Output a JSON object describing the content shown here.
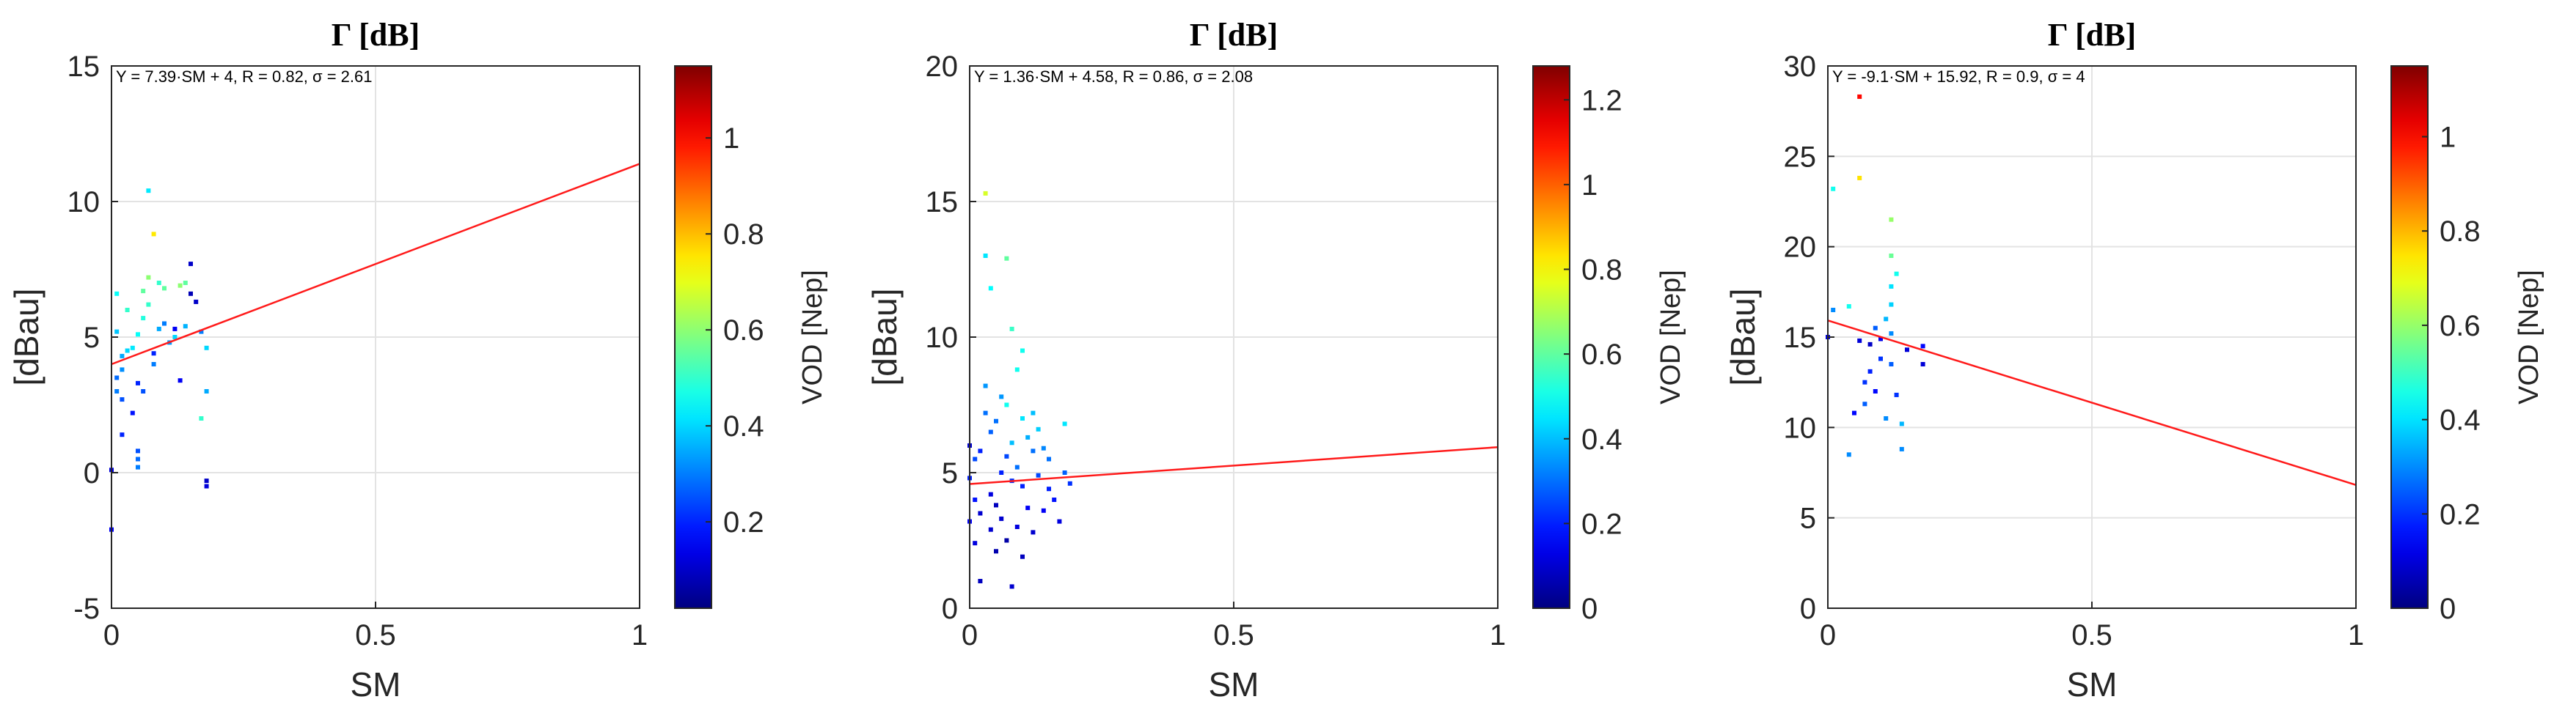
{
  "chart_data": [
    {
      "type": "scatter",
      "title": "Γ [dB]",
      "xlabel": "SM",
      "ylabel": "[dBau]",
      "xlim": [
        0,
        1
      ],
      "ylim": [
        -5,
        15
      ],
      "xticks": [
        "0",
        "0.5",
        "1"
      ],
      "yticks": [
        "-5",
        "0",
        "5",
        "10",
        "15"
      ],
      "grid": true,
      "annotation": "Y = 7.39·SM + 4, R = 0.82, σ = 2.61",
      "colorbar": {
        "label": "VOD [Nep]",
        "range": [
          0.02,
          1.15
        ],
        "ticks": [
          "0.2",
          "0.4",
          "0.6",
          "0.8",
          "1"
        ]
      },
      "fit_line": {
        "slope": 7.39,
        "intercept": 4,
        "color": "#ff1a1a"
      },
      "points": [
        {
          "x": 0.0,
          "y": 0.1,
          "c": 0.12
        },
        {
          "x": 0.0,
          "y": -2.1,
          "c": 0.15
        },
        {
          "x": 0.01,
          "y": 3.0,
          "c": 0.3
        },
        {
          "x": 0.01,
          "y": 3.5,
          "c": 0.28
        },
        {
          "x": 0.01,
          "y": 6.6,
          "c": 0.45
        },
        {
          "x": 0.01,
          "y": 5.2,
          "c": 0.38
        },
        {
          "x": 0.02,
          "y": 4.3,
          "c": 0.35
        },
        {
          "x": 0.02,
          "y": 2.7,
          "c": 0.25
        },
        {
          "x": 0.02,
          "y": 3.8,
          "c": 0.32
        },
        {
          "x": 0.03,
          "y": 4.5,
          "c": 0.4
        },
        {
          "x": 0.03,
          "y": 6.0,
          "c": 0.5
        },
        {
          "x": 0.04,
          "y": 4.6,
          "c": 0.42
        },
        {
          "x": 0.05,
          "y": 0.8,
          "c": 0.25
        },
        {
          "x": 0.05,
          "y": 0.2,
          "c": 0.3
        },
        {
          "x": 0.05,
          "y": 0.5,
          "c": 0.28
        },
        {
          "x": 0.05,
          "y": 3.3,
          "c": 0.2
        },
        {
          "x": 0.05,
          "y": 5.1,
          "c": 0.45
        },
        {
          "x": 0.06,
          "y": 3.0,
          "c": 0.25
        },
        {
          "x": 0.06,
          "y": 6.7,
          "c": 0.55
        },
        {
          "x": 0.07,
          "y": 7.2,
          "c": 0.6
        },
        {
          "x": 0.07,
          "y": 10.4,
          "c": 0.42
        },
        {
          "x": 0.07,
          "y": 6.2,
          "c": 0.5
        },
        {
          "x": 0.08,
          "y": 4.4,
          "c": 0.2
        },
        {
          "x": 0.08,
          "y": 4.0,
          "c": 0.3
        },
        {
          "x": 0.08,
          "y": 8.8,
          "c": 0.75
        },
        {
          "x": 0.09,
          "y": 7.0,
          "c": 0.5
        },
        {
          "x": 0.09,
          "y": 5.3,
          "c": 0.35
        },
        {
          "x": 0.1,
          "y": 5.5,
          "c": 0.3
        },
        {
          "x": 0.1,
          "y": 6.8,
          "c": 0.55
        },
        {
          "x": 0.12,
          "y": 5.0,
          "c": 0.4
        },
        {
          "x": 0.12,
          "y": 5.3,
          "c": 0.15
        },
        {
          "x": 0.13,
          "y": 3.4,
          "c": 0.15
        },
        {
          "x": 0.13,
          "y": 6.9,
          "c": 0.6
        },
        {
          "x": 0.14,
          "y": 7.0,
          "c": 0.55
        },
        {
          "x": 0.15,
          "y": 6.6,
          "c": 0.08
        },
        {
          "x": 0.15,
          "y": 7.7,
          "c": 0.1
        },
        {
          "x": 0.16,
          "y": 6.3,
          "c": 0.1
        },
        {
          "x": 0.17,
          "y": 5.2,
          "c": 0.3
        },
        {
          "x": 0.17,
          "y": 2.0,
          "c": 0.5
        },
        {
          "x": 0.18,
          "y": -0.3,
          "c": 0.1
        },
        {
          "x": 0.18,
          "y": -0.5,
          "c": 0.12
        },
        {
          "x": 0.18,
          "y": 4.6,
          "c": 0.4
        },
        {
          "x": 0.18,
          "y": 3.0,
          "c": 0.35
        },
        {
          "x": 0.02,
          "y": 1.4,
          "c": 0.2
        },
        {
          "x": 0.04,
          "y": 2.2,
          "c": 0.18
        },
        {
          "x": 0.06,
          "y": 5.7,
          "c": 0.48
        },
        {
          "x": 0.11,
          "y": 4.8,
          "c": 0.33
        },
        {
          "x": 0.14,
          "y": 5.4,
          "c": 0.36
        }
      ]
    },
    {
      "type": "scatter",
      "title": "Γ [dB]",
      "xlabel": "SM",
      "ylabel": "[dBau]",
      "xlim": [
        0,
        1
      ],
      "ylim": [
        0,
        20
      ],
      "xticks": [
        "0",
        "0.5",
        "1"
      ],
      "yticks": [
        "0",
        "5",
        "10",
        "15",
        "20"
      ],
      "grid": true,
      "annotation": "Y = 1.36·SM + 4.58, R = 0.86, σ = 2.08",
      "colorbar": {
        "label": "VOD [Nep]",
        "range": [
          0,
          1.28
        ],
        "ticks": [
          "0",
          "0.2",
          "0.4",
          "0.6",
          "0.8",
          "1",
          "1.2"
        ]
      },
      "fit_line": {
        "slope": 1.36,
        "intercept": 4.58,
        "color": "#ff1a1a"
      },
      "points": [
        {
          "x": 0.0,
          "y": 6.0,
          "c": 0.1
        },
        {
          "x": 0.0,
          "y": 4.8,
          "c": 0.2
        },
        {
          "x": 0.0,
          "y": 3.2,
          "c": 0.15
        },
        {
          "x": 0.01,
          "y": 2.4,
          "c": 0.12
        },
        {
          "x": 0.01,
          "y": 5.5,
          "c": 0.25
        },
        {
          "x": 0.01,
          "y": 4.0,
          "c": 0.18
        },
        {
          "x": 0.02,
          "y": 3.5,
          "c": 0.1
        },
        {
          "x": 0.02,
          "y": 1.0,
          "c": 0.08
        },
        {
          "x": 0.03,
          "y": 15.3,
          "c": 0.75
        },
        {
          "x": 0.03,
          "y": 13.0,
          "c": 0.45
        },
        {
          "x": 0.03,
          "y": 7.2,
          "c": 0.3
        },
        {
          "x": 0.03,
          "y": 8.2,
          "c": 0.35
        },
        {
          "x": 0.04,
          "y": 11.8,
          "c": 0.48
        },
        {
          "x": 0.04,
          "y": 6.5,
          "c": 0.28
        },
        {
          "x": 0.04,
          "y": 4.2,
          "c": 0.12
        },
        {
          "x": 0.05,
          "y": 3.8,
          "c": 0.08
        },
        {
          "x": 0.05,
          "y": 2.1,
          "c": 0.06
        },
        {
          "x": 0.05,
          "y": 6.9,
          "c": 0.3
        },
        {
          "x": 0.06,
          "y": 5.0,
          "c": 0.2
        },
        {
          "x": 0.06,
          "y": 3.3,
          "c": 0.1
        },
        {
          "x": 0.07,
          "y": 12.9,
          "c": 0.6
        },
        {
          "x": 0.07,
          "y": 7.5,
          "c": 0.5
        },
        {
          "x": 0.07,
          "y": 5.6,
          "c": 0.25
        },
        {
          "x": 0.07,
          "y": 2.5,
          "c": 0.05
        },
        {
          "x": 0.08,
          "y": 10.3,
          "c": 0.55
        },
        {
          "x": 0.08,
          "y": 6.1,
          "c": 0.4
        },
        {
          "x": 0.08,
          "y": 4.7,
          "c": 0.22
        },
        {
          "x": 0.08,
          "y": 0.8,
          "c": 0.1
        },
        {
          "x": 0.09,
          "y": 8.8,
          "c": 0.5
        },
        {
          "x": 0.09,
          "y": 5.2,
          "c": 0.3
        },
        {
          "x": 0.09,
          "y": 3.0,
          "c": 0.12
        },
        {
          "x": 0.1,
          "y": 7.0,
          "c": 0.45
        },
        {
          "x": 0.1,
          "y": 4.5,
          "c": 0.2
        },
        {
          "x": 0.1,
          "y": 1.9,
          "c": 0.08
        },
        {
          "x": 0.11,
          "y": 6.3,
          "c": 0.38
        },
        {
          "x": 0.11,
          "y": 3.7,
          "c": 0.15
        },
        {
          "x": 0.12,
          "y": 5.8,
          "c": 0.3
        },
        {
          "x": 0.12,
          "y": 2.8,
          "c": 0.1
        },
        {
          "x": 0.13,
          "y": 4.9,
          "c": 0.25
        },
        {
          "x": 0.13,
          "y": 6.6,
          "c": 0.42
        },
        {
          "x": 0.14,
          "y": 3.6,
          "c": 0.15
        },
        {
          "x": 0.15,
          "y": 4.4,
          "c": 0.2
        },
        {
          "x": 0.15,
          "y": 5.5,
          "c": 0.3
        },
        {
          "x": 0.16,
          "y": 4.0,
          "c": 0.18
        },
        {
          "x": 0.17,
          "y": 3.2,
          "c": 0.12
        },
        {
          "x": 0.18,
          "y": 5.0,
          "c": 0.28
        },
        {
          "x": 0.18,
          "y": 6.8,
          "c": 0.45
        },
        {
          "x": 0.19,
          "y": 4.6,
          "c": 0.22
        },
        {
          "x": 0.06,
          "y": 7.8,
          "c": 0.35
        },
        {
          "x": 0.1,
          "y": 9.5,
          "c": 0.5
        },
        {
          "x": 0.12,
          "y": 7.2,
          "c": 0.4
        },
        {
          "x": 0.14,
          "y": 5.9,
          "c": 0.33
        },
        {
          "x": 0.02,
          "y": 5.8,
          "c": 0.2
        },
        {
          "x": 0.04,
          "y": 2.9,
          "c": 0.1
        }
      ]
    },
    {
      "type": "scatter",
      "title": "Γ [dB]",
      "xlabel": "SM",
      "ylabel": "[dBau]",
      "xlim": [
        0,
        1
      ],
      "ylim": [
        0,
        30
      ],
      "xticks": [
        "0",
        "0.5",
        "1"
      ],
      "yticks": [
        "0",
        "5",
        "10",
        "15",
        "20",
        "25",
        "30"
      ],
      "grid": true,
      "annotation": "Y = -9.1·SM + 15.92, R = 0.9, σ = 4",
      "colorbar": {
        "label": "VOD [Nep]",
        "range": [
          0,
          1.15
        ],
        "ticks": [
          "0",
          "0.2",
          "0.4",
          "0.6",
          "0.8",
          "1"
        ]
      },
      "fit_line": {
        "slope": -9.1,
        "intercept": 15.92,
        "color": "#ff1a1a"
      },
      "points": [
        {
          "x": 0.0,
          "y": 15.0,
          "c": 0.1
        },
        {
          "x": 0.01,
          "y": 23.2,
          "c": 0.45
        },
        {
          "x": 0.01,
          "y": 16.5,
          "c": 0.3
        },
        {
          "x": 0.04,
          "y": 16.7,
          "c": 0.45
        },
        {
          "x": 0.04,
          "y": 8.5,
          "c": 0.3
        },
        {
          "x": 0.05,
          "y": 10.8,
          "c": 0.15
        },
        {
          "x": 0.06,
          "y": 28.3,
          "c": 1.0
        },
        {
          "x": 0.06,
          "y": 23.8,
          "c": 0.75
        },
        {
          "x": 0.06,
          "y": 14.8,
          "c": 0.1
        },
        {
          "x": 0.07,
          "y": 12.5,
          "c": 0.2
        },
        {
          "x": 0.07,
          "y": 11.3,
          "c": 0.25
        },
        {
          "x": 0.08,
          "y": 13.1,
          "c": 0.18
        },
        {
          "x": 0.08,
          "y": 14.6,
          "c": 0.08
        },
        {
          "x": 0.09,
          "y": 12.0,
          "c": 0.15
        },
        {
          "x": 0.1,
          "y": 14.9,
          "c": 0.12
        },
        {
          "x": 0.11,
          "y": 10.5,
          "c": 0.3
        },
        {
          "x": 0.11,
          "y": 16.0,
          "c": 0.35
        },
        {
          "x": 0.12,
          "y": 21.5,
          "c": 0.6
        },
        {
          "x": 0.12,
          "y": 19.5,
          "c": 0.55
        },
        {
          "x": 0.12,
          "y": 17.8,
          "c": 0.4
        },
        {
          "x": 0.12,
          "y": 15.2,
          "c": 0.3
        },
        {
          "x": 0.12,
          "y": 13.5,
          "c": 0.25
        },
        {
          "x": 0.13,
          "y": 18.5,
          "c": 0.45
        },
        {
          "x": 0.13,
          "y": 11.8,
          "c": 0.2
        },
        {
          "x": 0.14,
          "y": 10.2,
          "c": 0.35
        },
        {
          "x": 0.14,
          "y": 8.8,
          "c": 0.3
        },
        {
          "x": 0.15,
          "y": 14.3,
          "c": 0.1
        },
        {
          "x": 0.18,
          "y": 13.5,
          "c": 0.1
        },
        {
          "x": 0.18,
          "y": 14.5,
          "c": 0.15
        },
        {
          "x": 0.1,
          "y": 13.8,
          "c": 0.2
        },
        {
          "x": 0.09,
          "y": 15.5,
          "c": 0.25
        },
        {
          "x": 0.12,
          "y": 16.8,
          "c": 0.38
        }
      ]
    }
  ]
}
